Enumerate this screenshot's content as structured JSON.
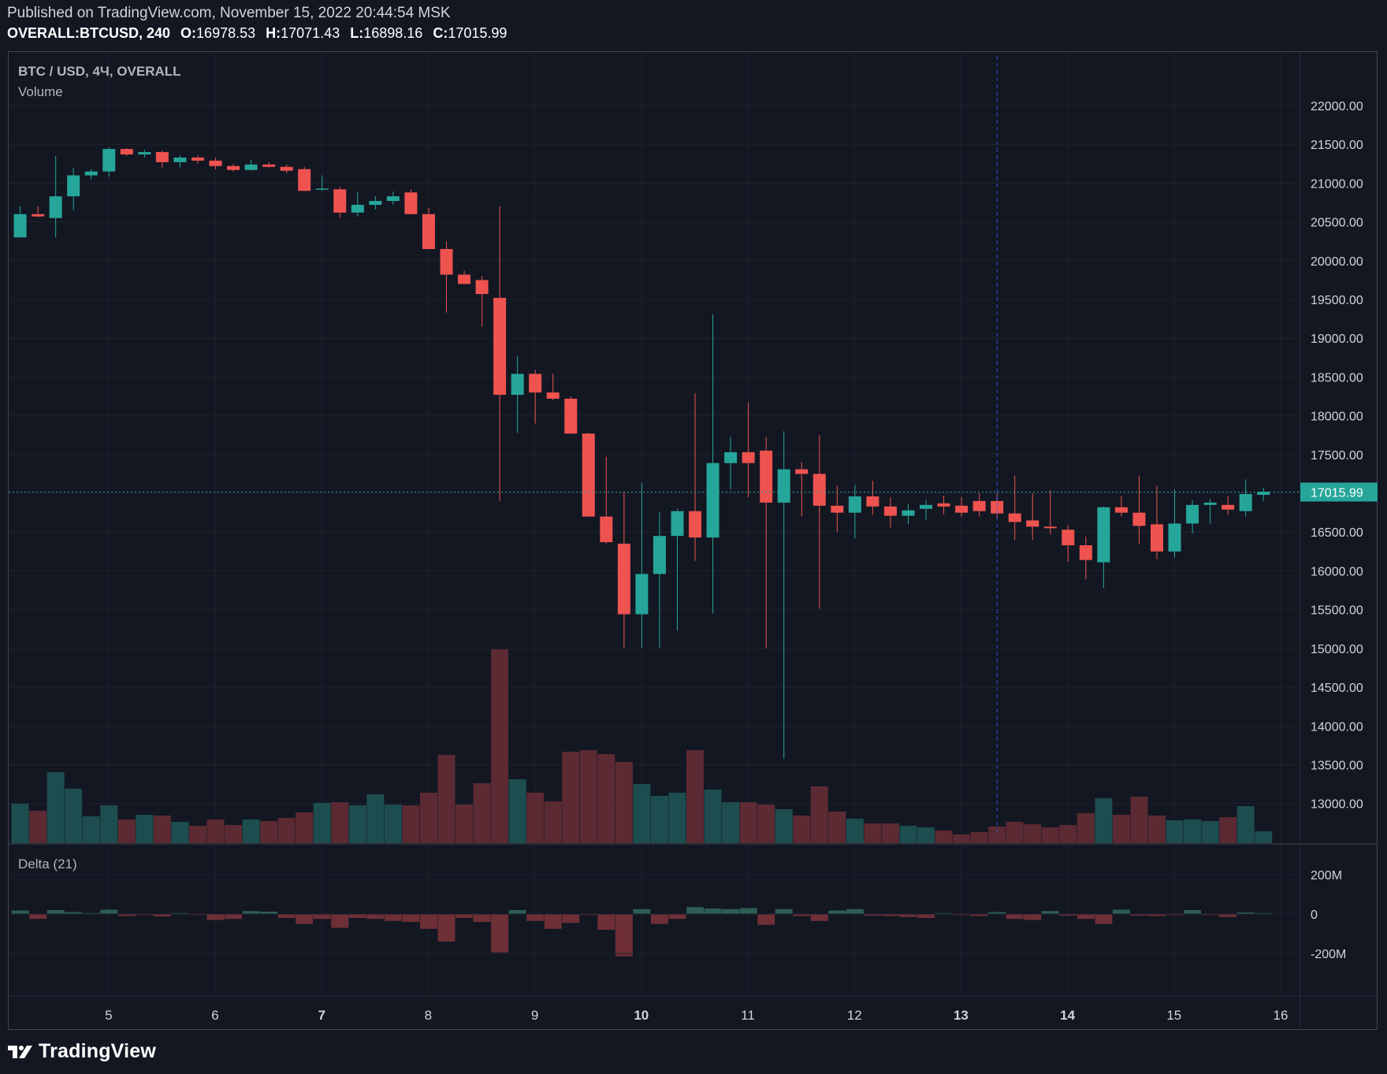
{
  "header": {
    "published": "Published on TradingView.com, November 15, 2022 20:44:54 MSK",
    "symbol": "OVERALL:BTCUSD, 240",
    "o_label": "O:",
    "o_value": "16978.53",
    "h_label": "H:",
    "h_value": "17071.43",
    "l_label": "L:",
    "l_value": "16898.16",
    "c_label": "C:",
    "c_value": "17015.99"
  },
  "chart_data": {
    "type": "candlestick",
    "title": "BTC / USD, 4Ч, OVERALL",
    "volume_label": "Volume",
    "delta_label": "Delta (21)",
    "price_ticks": [
      "22000.00",
      "21500.00",
      "21000.00",
      "20500.00",
      "20000.00",
      "19500.00",
      "19000.00",
      "18500.00",
      "18000.00",
      "17500.00",
      "17000.00",
      "16500.00",
      "16000.00",
      "15500.00",
      "15000.00",
      "14500.00",
      "14000.00",
      "13500.00",
      "13000.00"
    ],
    "price_range": [
      12570,
      22640
    ],
    "last_price": "17015.99",
    "delta_ticks": [
      "200M",
      "0",
      "-200M"
    ],
    "x_ticks": [
      "5",
      "6",
      "7",
      "8",
      "9",
      "10",
      "11",
      "12",
      "13",
      "14",
      "15",
      "16"
    ],
    "bold_x_ticks": [
      "7",
      "10",
      "13",
      "14"
    ],
    "first_bar_x": 4.17,
    "bar_step_days": 0.1667,
    "crosshair_x": 13.34,
    "candles": [
      [
        20300,
        20700,
        20300,
        20600
      ],
      [
        20600,
        20700,
        20560,
        20570
      ],
      [
        20550,
        21350,
        20300,
        20830
      ],
      [
        20830,
        21200,
        20650,
        21100
      ],
      [
        21100,
        21180,
        21050,
        21150
      ],
      [
        21150,
        21460,
        21080,
        21440
      ],
      [
        21440,
        21450,
        21350,
        21370
      ],
      [
        21370,
        21430,
        21330,
        21400
      ],
      [
        21400,
        21420,
        21200,
        21270
      ],
      [
        21270,
        21360,
        21200,
        21330
      ],
      [
        21330,
        21360,
        21250,
        21290
      ],
      [
        21290,
        21330,
        21180,
        21220
      ],
      [
        21220,
        21250,
        21150,
        21170
      ],
      [
        21170,
        21300,
        21160,
        21240
      ],
      [
        21240,
        21270,
        21200,
        21210
      ],
      [
        21210,
        21240,
        21130,
        21160
      ],
      [
        21180,
        21210,
        20900,
        20900
      ],
      [
        20920,
        21100,
        20900,
        20930
      ],
      [
        20920,
        20950,
        20550,
        20620
      ],
      [
        20620,
        20880,
        20570,
        20720
      ],
      [
        20720,
        20830,
        20660,
        20770
      ],
      [
        20770,
        20890,
        20720,
        20830
      ],
      [
        20880,
        20920,
        20600,
        20600
      ],
      [
        20600,
        20680,
        20150,
        20150
      ],
      [
        20150,
        20250,
        19330,
        19820
      ],
      [
        19820,
        19870,
        19700,
        19700
      ],
      [
        19750,
        19800,
        19150,
        19570
      ],
      [
        19520,
        20700,
        16900,
        18270
      ],
      [
        18270,
        18770,
        17780,
        18540
      ],
      [
        18540,
        18590,
        17900,
        18300
      ],
      [
        18300,
        18540,
        18200,
        18220
      ],
      [
        18220,
        18250,
        17770,
        17770
      ],
      [
        17770,
        17780,
        16700,
        16700
      ],
      [
        16700,
        17470,
        16350,
        16370
      ],
      [
        16350,
        17010,
        15010,
        15440
      ],
      [
        15440,
        17130,
        15010,
        15960
      ],
      [
        15960,
        16760,
        15010,
        16450
      ],
      [
        16450,
        16800,
        15230,
        16770
      ],
      [
        16770,
        18290,
        16130,
        16430
      ],
      [
        16430,
        19310,
        15450,
        17390
      ],
      [
        17390,
        17730,
        17050,
        17530
      ],
      [
        17530,
        18170,
        16950,
        17390
      ],
      [
        17550,
        17730,
        15000,
        16880
      ],
      [
        16880,
        17800,
        13580,
        17310
      ],
      [
        17310,
        17400,
        16700,
        17250
      ],
      [
        17250,
        17750,
        15510,
        16840
      ],
      [
        16840,
        17100,
        16500,
        16750
      ],
      [
        16750,
        17110,
        16420,
        16960
      ],
      [
        16960,
        17160,
        16720,
        16830
      ],
      [
        16830,
        16950,
        16560,
        16710
      ],
      [
        16710,
        16860,
        16600,
        16780
      ],
      [
        16800,
        16920,
        16650,
        16850
      ],
      [
        16870,
        16970,
        16730,
        16830
      ],
      [
        16840,
        16950,
        16700,
        16750
      ],
      [
        16900,
        17000,
        16700,
        16770
      ],
      [
        16900,
        17000,
        16680,
        16740
      ],
      [
        16740,
        17230,
        16400,
        16630
      ],
      [
        16650,
        17000,
        16400,
        16570
      ],
      [
        16570,
        17040,
        16470,
        16550
      ],
      [
        16530,
        16590,
        16120,
        16330
      ],
      [
        16330,
        16440,
        15890,
        16140
      ],
      [
        16110,
        16830,
        15780,
        16820
      ],
      [
        16820,
        16960,
        16700,
        16750
      ],
      [
        16750,
        17230,
        16350,
        16580
      ],
      [
        16600,
        17100,
        16150,
        16250
      ],
      [
        16250,
        17050,
        16170,
        16610
      ],
      [
        16610,
        16910,
        16480,
        16850
      ],
      [
        16850,
        16930,
        16610,
        16880
      ],
      [
        16850,
        16960,
        16720,
        16790
      ],
      [
        16770,
        17180,
        16700,
        16990
      ],
      [
        16980,
        17070,
        16900,
        17020
      ]
    ],
    "volume": [
      50,
      41,
      90,
      69,
      34,
      48,
      30,
      36,
      35,
      27,
      22,
      30,
      23,
      30,
      28,
      32,
      39,
      51,
      52,
      48,
      62,
      49,
      48,
      64,
      112,
      49,
      76,
      246,
      81,
      64,
      53,
      116,
      118,
      113,
      103,
      75,
      60,
      64,
      118,
      68,
      52,
      52,
      49,
      43,
      35,
      72,
      40,
      31,
      25,
      25,
      22,
      20,
      16,
      11,
      14,
      21,
      27,
      24,
      20,
      23,
      38,
      57,
      36,
      59,
      35,
      29,
      30,
      28,
      33,
      47,
      15
    ],
    "delta": [
      18,
      -25,
      20,
      10,
      5,
      22,
      -10,
      -5,
      -12,
      5,
      -4,
      -30,
      -25,
      15,
      12,
      -20,
      -50,
      -25,
      -70,
      -20,
      -25,
      -35,
      -40,
      -75,
      -140,
      -20,
      -40,
      -195,
      20,
      -35,
      -75,
      -45,
      -5,
      -80,
      -215,
      25,
      -50,
      -25,
      35,
      28,
      25,
      30,
      -55,
      25,
      -10,
      -35,
      18,
      25,
      -8,
      -10,
      -15,
      -20,
      5,
      -5,
      -10,
      10,
      -25,
      -30,
      15,
      -8,
      -25,
      -50,
      22,
      -8,
      -10,
      -5,
      20,
      -5,
      -15,
      8,
      5
    ]
  },
  "footer": {
    "brand": "TradingView"
  }
}
